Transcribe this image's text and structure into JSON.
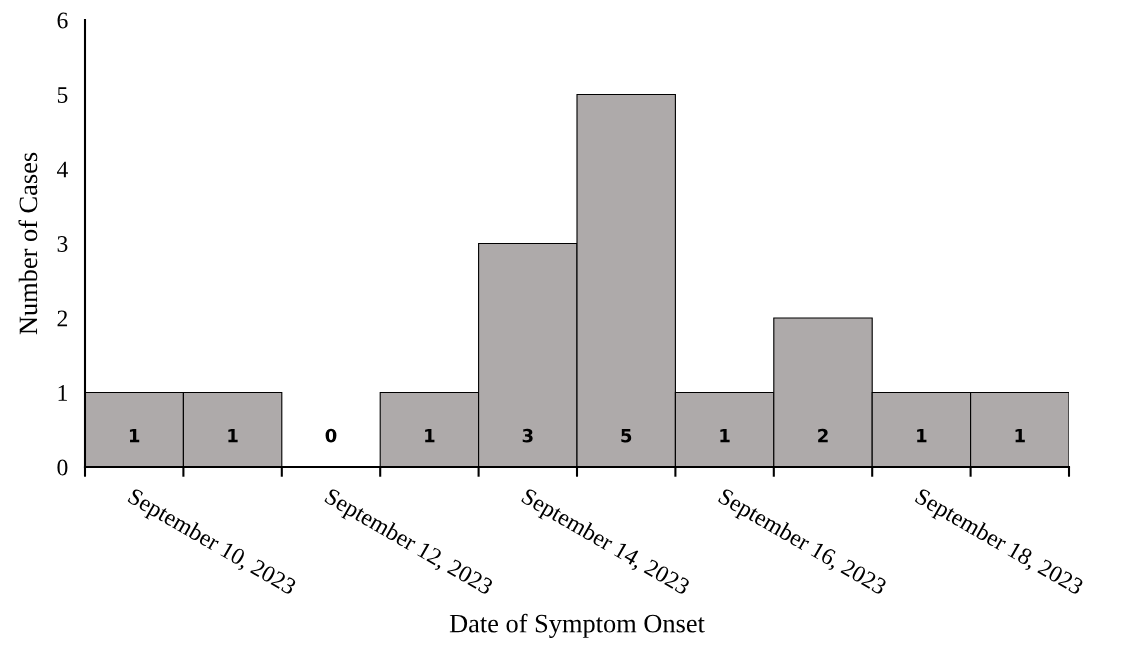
{
  "chart_data": {
    "type": "bar",
    "xlabel": "Date of Symptom Onset",
    "ylabel": "Number of Cases",
    "categories": [
      "September 10, 2023",
      null,
      "September 12, 2023",
      null,
      "September 14, 2023",
      null,
      "September 16, 2023",
      null,
      "September 18, 2023",
      null
    ],
    "values": [
      1,
      1,
      0,
      1,
      3,
      5,
      1,
      2,
      1,
      1
    ],
    "color": "#aeaaaa",
    "ylim": [
      0,
      6
    ],
    "yticks": [
      0,
      1,
      2,
      3,
      4,
      5,
      6
    ],
    "data_labels": true,
    "grid": false,
    "legend": false
  }
}
